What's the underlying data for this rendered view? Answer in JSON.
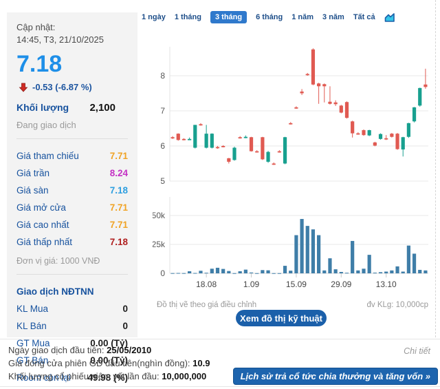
{
  "sidebar": {
    "updated_label": "Cập nhật:",
    "updated_value": "14:45, T3, 21/10/2025",
    "price": "7.18",
    "change": "-0.53 (-6.87 %)",
    "volume_label": "Khối lượng",
    "volume_value": "2,100",
    "status": "Đang giao dịch",
    "price_rows": [
      {
        "label": "Giá tham chiếu",
        "value": "7.71",
        "color": "#F0A325"
      },
      {
        "label": "Giá trần",
        "value": "8.24",
        "color": "#C431C4"
      },
      {
        "label": "Giá sàn",
        "value": "7.18",
        "color": "#2E9FE0"
      },
      {
        "label": "Giá mở cửa",
        "value": "7.71",
        "color": "#F0A325"
      },
      {
        "label": "Giá cao nhất",
        "value": "7.71",
        "color": "#F0A325"
      },
      {
        "label": "Giá thấp nhất",
        "value": "7.18",
        "color": "#B02020"
      }
    ],
    "unit_note": "Đơn vị giá: 1000 VNĐ",
    "foreign_title": "Giao dịch NĐTNN",
    "foreign_rows": [
      {
        "label": "KL Mua",
        "value": "0"
      },
      {
        "label": "KL Bán",
        "value": "0"
      },
      {
        "label": "GT Mua",
        "value": "0.00 (Tỷ)"
      },
      {
        "label": "GT Bán",
        "value": "0.00 (Tỷ)"
      },
      {
        "label": "Room còn lại",
        "value": "49.98 (%)"
      }
    ]
  },
  "tabs": [
    {
      "label": "1 ngày",
      "active": false
    },
    {
      "label": "1 tháng",
      "active": false
    },
    {
      "label": "3 tháng",
      "active": true
    },
    {
      "label": "6 tháng",
      "active": false
    },
    {
      "label": "1 năm",
      "active": false
    },
    {
      "label": "3 năm",
      "active": false
    },
    {
      "label": "Tất cả",
      "active": false
    }
  ],
  "chart_data": {
    "type": "candlestick",
    "title": "",
    "price_axis": {
      "ticks": [
        8,
        7,
        6,
        5
      ],
      "range": [
        4.9,
        8.85
      ]
    },
    "volume_axis": {
      "ticks": [
        {
          "v": 50000,
          "label": "50k"
        },
        {
          "v": 25000,
          "label": "25k"
        },
        {
          "v": 0,
          "label": "0"
        }
      ],
      "range": [
        0,
        65000
      ]
    },
    "x_ticks": [
      {
        "index": 6,
        "label": "18.08"
      },
      {
        "index": 14,
        "label": "1.09"
      },
      {
        "index": 22,
        "label": "15.09"
      },
      {
        "index": 30,
        "label": "29.09"
      },
      {
        "index": 38,
        "label": "13.10"
      }
    ],
    "candles": [
      [
        6.25,
        6.28,
        6.2,
        6.22
      ],
      [
        6.35,
        6.36,
        6.15,
        6.17
      ],
      [
        6.2,
        6.22,
        6.16,
        6.18
      ],
      [
        6.2,
        6.24,
        6.17,
        6.2
      ],
      [
        5.95,
        6.6,
        5.93,
        6.6
      ],
      [
        6.62,
        6.65,
        6.58,
        6.6
      ],
      [
        5.95,
        6.6,
        5.93,
        6.35
      ],
      [
        5.95,
        6.36,
        5.93,
        6.35
      ],
      [
        5.97,
        6.0,
        5.92,
        5.95
      ],
      [
        6.0,
        6.02,
        5.96,
        5.98
      ],
      [
        5.65,
        5.66,
        5.5,
        5.55
      ],
      [
        5.6,
        5.98,
        5.58,
        5.95
      ],
      [
        6.25,
        6.28,
        6.21,
        6.24
      ],
      [
        6.25,
        6.3,
        6.22,
        6.26
      ],
      [
        6.25,
        6.26,
        5.84,
        5.85
      ],
      [
        5.85,
        5.88,
        5.81,
        5.84
      ],
      [
        6.25,
        6.26,
        5.6,
        5.62
      ],
      [
        5.55,
        5.86,
        5.52,
        5.83
      ],
      [
        5.5,
        5.53,
        5.46,
        5.49
      ],
      [
        5.85,
        5.88,
        5.81,
        5.84
      ],
      [
        5.5,
        6.26,
        5.48,
        6.25
      ],
      [
        6.65,
        6.68,
        6.61,
        6.64
      ],
      [
        7.1,
        7.13,
        7.06,
        7.09
      ],
      [
        7.55,
        7.62,
        7.45,
        7.5
      ],
      [
        8.05,
        8.08,
        8.0,
        8.03
      ],
      [
        8.75,
        8.78,
        7.73,
        7.75
      ],
      [
        7.78,
        7.8,
        7.2,
        7.7
      ],
      [
        7.76,
        7.78,
        7.24,
        7.7
      ],
      [
        7.26,
        7.7,
        7.18,
        7.2
      ],
      [
        7.24,
        7.3,
        7.14,
        7.19
      ],
      [
        7.15,
        7.17,
        6.93,
        6.95
      ],
      [
        7.25,
        7.27,
        6.78,
        6.8
      ],
      [
        6.7,
        6.72,
        6.24,
        6.36
      ],
      [
        6.36,
        6.39,
        6.32,
        6.34
      ],
      [
        6.45,
        6.47,
        6.29,
        6.31
      ],
      [
        6.3,
        6.46,
        6.28,
        6.45
      ],
      [
        6.1,
        6.12,
        5.99,
        6.01
      ],
      [
        6.2,
        6.36,
        6.18,
        6.34
      ],
      [
        6.22,
        6.31,
        6.17,
        6.19
      ],
      [
        6.35,
        6.37,
        6.24,
        6.26
      ],
      [
        6.35,
        6.37,
        5.89,
        5.91
      ],
      [
        5.9,
        6.26,
        5.7,
        6.25
      ],
      [
        6.26,
        6.66,
        6.23,
        6.65
      ],
      [
        6.7,
        7.11,
        6.67,
        7.1
      ],
      [
        7.15,
        7.66,
        7.12,
        7.65
      ],
      [
        7.75,
        8.2,
        7.63,
        7.68
      ]
    ],
    "volumes": [
      200,
      300,
      200,
      1800,
      300,
      2200,
      500,
      4000,
      4800,
      3800,
      2000,
      150,
      1800,
      3200,
      700,
      150,
      2800,
      2600,
      150,
      150,
      6500,
      2300,
      33000,
      47000,
      41000,
      38000,
      33000,
      2500,
      13000,
      3500,
      1200,
      500,
      28000,
      2500,
      4000,
      16000,
      600,
      1000,
      1500,
      2500,
      6000,
      1500,
      24000,
      17000,
      3000,
      2500
    ],
    "colors": {
      "up": "#18A08F",
      "down": "#E05A52",
      "volume": "#3F7EA8"
    },
    "grid": true,
    "legend": "none"
  },
  "chart_notes": {
    "left": "Đồ thị vẽ theo giá điều chỉnh",
    "right": "đv KLg: 10,000cp"
  },
  "buttons": {
    "technical_chart": "Xem đồ thị kỹ thuật",
    "dividend_history": "Lịch sử trả cổ tức chia thưởng và tăng vốn »"
  },
  "footer": {
    "rows": [
      {
        "label": "Ngày giao dịch đầu tiên:",
        "value": "25/05/2010"
      },
      {
        "label": "Giá đóng cửa phiên GD đầu tiên(nghìn đồng):",
        "value": "10.9"
      },
      {
        "label": "Khối lượng cổ phiếu niêm yết lần đầu:",
        "value": "10,000,000"
      }
    ],
    "detail_link": "Chi tiết"
  }
}
